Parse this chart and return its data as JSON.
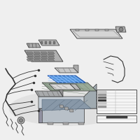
{
  "background_color": "#efefef",
  "line_color": "#444444",
  "highlight_color": "#4d8fd4",
  "dark_color": "#333333",
  "fig_width": 2.0,
  "fig_height": 2.0,
  "dpi": 100
}
